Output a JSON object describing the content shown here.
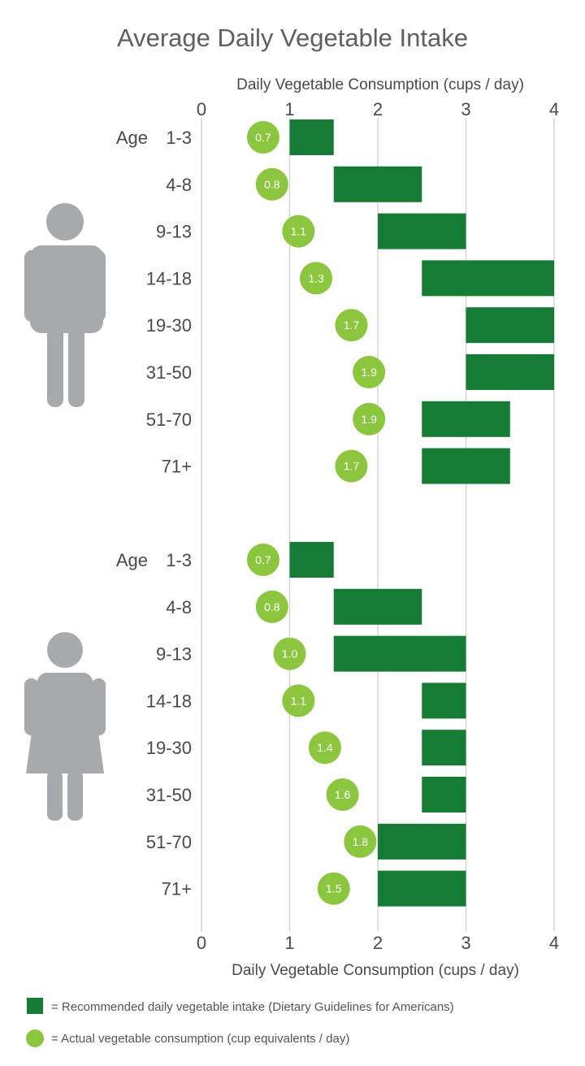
{
  "chart_data": {
    "type": "bar",
    "title": "Average Daily Vegetable Intake",
    "xlabel": "Daily Vegetable Consumption (cups / day)",
    "xlim": [
      0,
      4
    ],
    "x_ticks": [
      "0",
      "1",
      "2",
      "3",
      "4"
    ],
    "grid": true,
    "legend_placement": "bottom",
    "age_prefix": "Age",
    "colors": {
      "recommended": "#167b34",
      "actual": "#8cc63f",
      "grid": "#cfcfcf",
      "icon": "#a7a9ac"
    },
    "legend": [
      {
        "symbol": "square",
        "label": "= Recommended daily vegetable intake (Dietary Guidelines for Americans)"
      },
      {
        "symbol": "circle",
        "label": "= Actual vegetable consumption (cup equivalents / day)"
      }
    ],
    "groups": [
      {
        "icon": "male-icon",
        "categories": [
          "1-3",
          "4-8",
          "9-13",
          "14-18",
          "19-30",
          "31-50",
          "51-70",
          "71+"
        ],
        "recommended": [
          [
            1,
            1.5
          ],
          [
            1.5,
            2.5
          ],
          [
            2,
            3
          ],
          [
            2.5,
            4
          ],
          [
            3,
            4
          ],
          [
            3,
            4
          ],
          [
            2.5,
            3.5
          ],
          [
            2.5,
            3.5
          ]
        ],
        "actual": [
          0.7,
          0.8,
          1.1,
          1.3,
          1.7,
          1.9,
          1.9,
          1.7
        ],
        "actual_labels": [
          "0.7",
          "0.8",
          "1.1",
          "1.3",
          "1.7",
          "1.9",
          "1.9",
          "1.7"
        ]
      },
      {
        "icon": "female-icon",
        "categories": [
          "1-3",
          "4-8",
          "9-13",
          "14-18",
          "19-30",
          "31-50",
          "51-70",
          "71+"
        ],
        "recommended": [
          [
            1,
            1.5
          ],
          [
            1.5,
            2.5
          ],
          [
            1.5,
            3
          ],
          [
            2.5,
            3
          ],
          [
            2.5,
            3
          ],
          [
            2.5,
            3
          ],
          [
            2,
            3
          ],
          [
            2,
            3
          ]
        ],
        "actual": [
          0.7,
          0.8,
          1.0,
          1.1,
          1.4,
          1.6,
          1.8,
          1.5
        ],
        "actual_labels": [
          "0.7",
          "0.8",
          "1.0",
          "1.1",
          "1.4",
          "1.6",
          "1.8",
          "1.5"
        ]
      }
    ]
  }
}
